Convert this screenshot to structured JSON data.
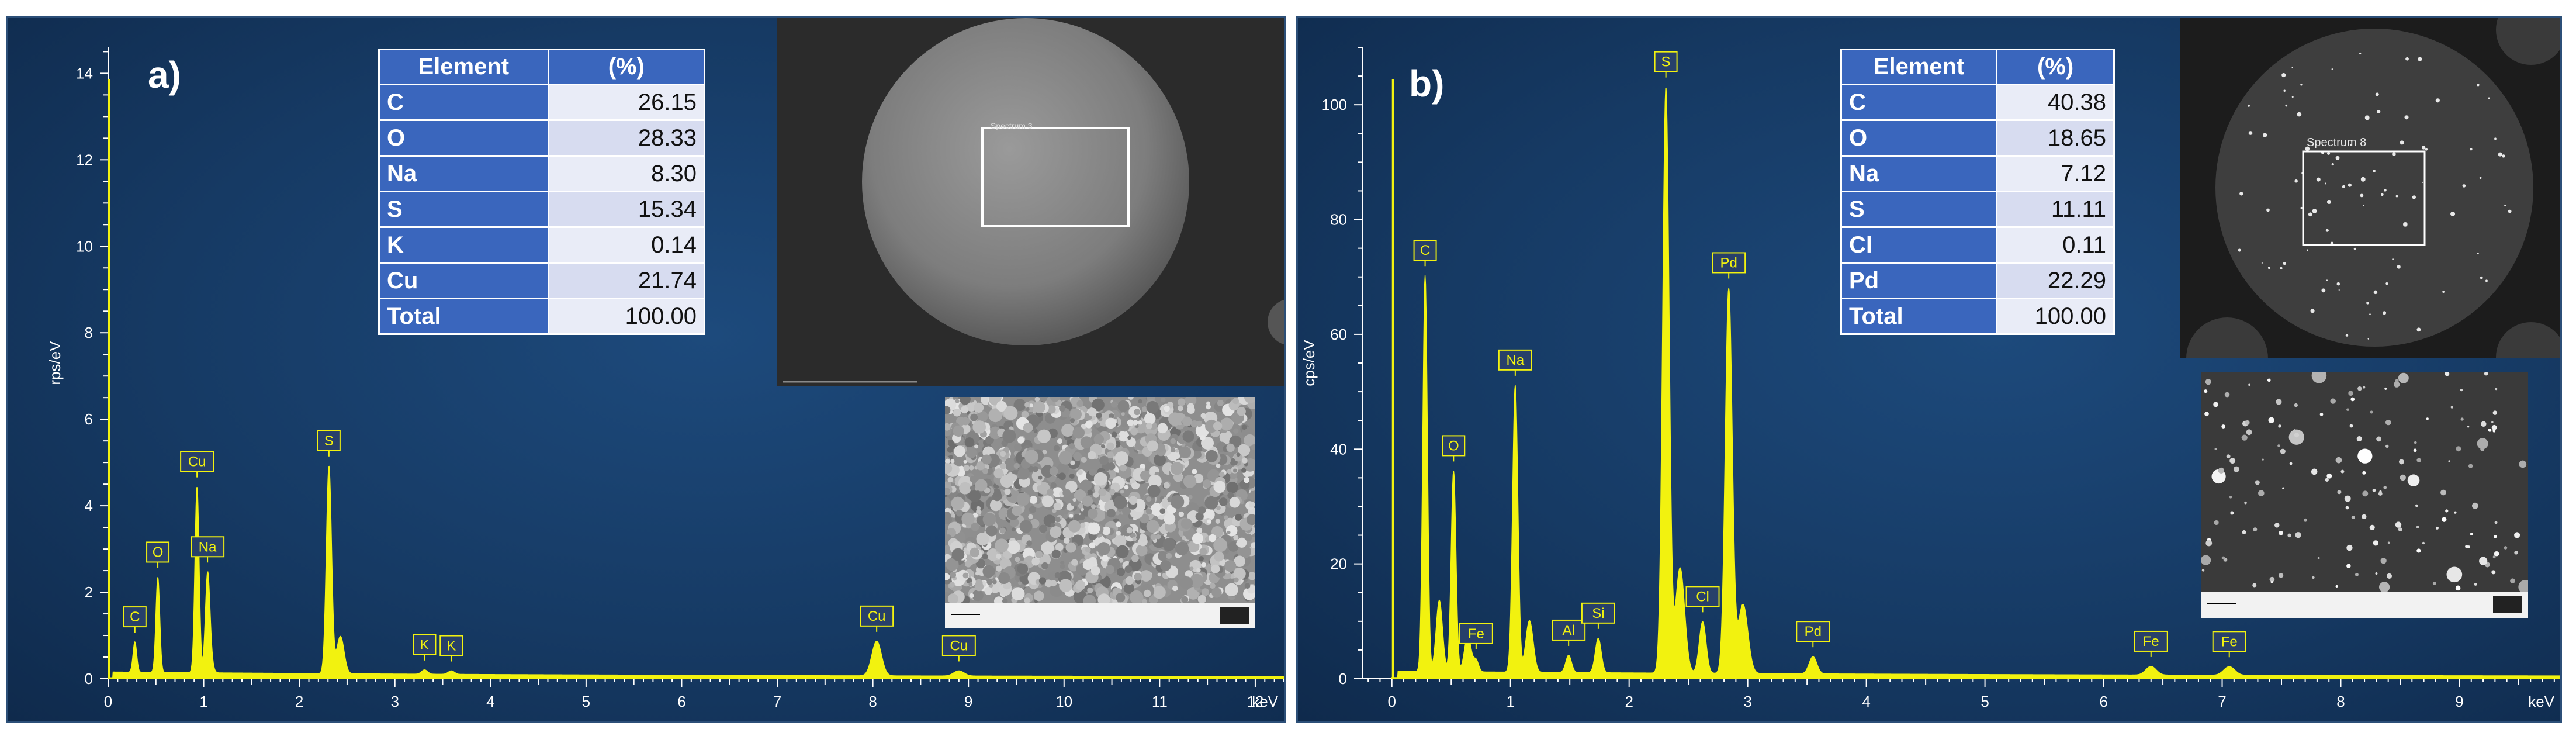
{
  "chart_data": [
    {
      "type": "area",
      "panel_label": "a)",
      "xlabel": "keV",
      "ylabel": "rps/eV",
      "xlim": [
        0,
        12.3
      ],
      "ylim": [
        0,
        14.6
      ],
      "x_ticks": [
        "0",
        "1",
        "2",
        "3",
        "4",
        "5",
        "6",
        "7",
        "8",
        "9",
        "10",
        "11",
        "12"
      ],
      "y_ticks": [
        "0",
        "2",
        "4",
        "6",
        "8",
        "10",
        "12",
        "14"
      ],
      "grid": false,
      "series_color": "#f2f20f",
      "baseline": 0.12,
      "peaks": [
        {
          "label": "C",
          "x": 0.28,
          "y": 0.7
        },
        {
          "label": "O",
          "x": 0.52,
          "y": 2.2
        },
        {
          "label": "Cu",
          "x": 0.93,
          "y": 4.3
        },
        {
          "label": "Na",
          "x": 1.04,
          "y": 1.6
        },
        {
          "label": "S",
          "x": 2.31,
          "y": 4.8
        },
        {
          "label": "K",
          "x": 3.31,
          "y": 0.1
        },
        {
          "label": "K",
          "x": 3.59,
          "y": 0.08
        },
        {
          "label": "Cu",
          "x": 8.04,
          "y": 0.8
        },
        {
          "label": "Cu",
          "x": 8.9,
          "y": 0.12
        }
      ],
      "table": {
        "headers": [
          "Element",
          "(%)"
        ],
        "rows": [
          [
            "C",
            "26.15"
          ],
          [
            "O",
            "28.33"
          ],
          [
            "Na",
            "8.30"
          ],
          [
            "S",
            "15.34"
          ],
          [
            "K",
            "0.14"
          ],
          [
            "Cu",
            "21.74"
          ],
          [
            "Total",
            "100.00"
          ]
        ]
      },
      "inset_caption": "Spectrum 3"
    },
    {
      "type": "area",
      "panel_label": "b)",
      "xlabel": "keV",
      "ylabel": "cps/eV",
      "xlim": [
        -0.25,
        9.85
      ],
      "ylim": [
        0,
        110
      ],
      "x_ticks": [
        "0",
        "1",
        "2",
        "3",
        "4",
        "5",
        "6",
        "7",
        "8",
        "9"
      ],
      "y_ticks": [
        "0",
        "20",
        "40",
        "60",
        "80",
        "100"
      ],
      "grid": false,
      "series_color": "#f2f20f",
      "baseline": 1.0,
      "peaks": [
        {
          "label": "C",
          "x": 0.28,
          "y": 69
        },
        {
          "label": "O",
          "x": 0.52,
          "y": 35
        },
        {
          "label": "Fe",
          "x": 0.71,
          "y": 2
        },
        {
          "label": "Na",
          "x": 1.04,
          "y": 50
        },
        {
          "label": "Al",
          "x": 1.49,
          "y": 3
        },
        {
          "label": "Si",
          "x": 1.74,
          "y": 6
        },
        {
          "label": "S",
          "x": 2.31,
          "y": 102
        },
        {
          "label": "Cl",
          "x": 2.62,
          "y": 9
        },
        {
          "label": "Pd",
          "x": 2.84,
          "y": 67
        },
        {
          "label": "Pd",
          "x": 3.55,
          "y": 3
        },
        {
          "label": "Fe",
          "x": 6.4,
          "y": 1.5
        },
        {
          "label": "Fe",
          "x": 7.06,
          "y": 1.5
        }
      ],
      "table": {
        "headers": [
          "Element",
          "(%)"
        ],
        "rows": [
          [
            "C",
            "40.38"
          ],
          [
            "O",
            "18.65"
          ],
          [
            "Na",
            "7.12"
          ],
          [
            "S",
            "11.11"
          ],
          [
            "Cl",
            "0.11"
          ],
          [
            "Pd",
            "22.29"
          ],
          [
            "Total",
            "100.00"
          ]
        ]
      },
      "inset_caption": "Spectrum 8"
    }
  ]
}
